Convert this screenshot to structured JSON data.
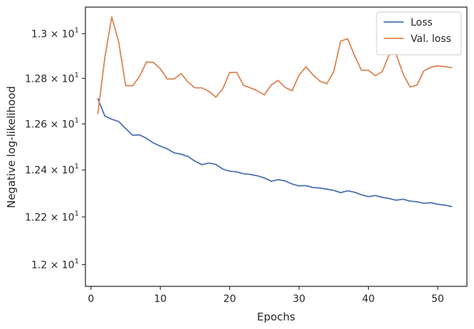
{
  "chart_data": {
    "type": "line",
    "title": "",
    "xlabel": "Epochs",
    "ylabel": "Negative log-likelihood",
    "xlim": [
      -0.8,
      54.2
    ],
    "ylim": [
      11.91,
      13.12
    ],
    "yscale": "log",
    "grid": false,
    "legend_position": "top-right",
    "x_ticks": [
      0,
      10,
      20,
      30,
      40,
      50
    ],
    "x_tick_labels": [
      "0",
      "10",
      "20",
      "30",
      "40",
      "50"
    ],
    "y_ticks": [
      12.0,
      12.2,
      12.4,
      12.6,
      12.8,
      13.0
    ],
    "y_tick_labels": [
      {
        "mantissa": "1.2",
        "times": "×",
        "base": "10",
        "exp": "1"
      },
      {
        "mantissa": "1.22",
        "times": "×",
        "base": "10",
        "exp": "1"
      },
      {
        "mantissa": "1.24",
        "times": "×",
        "base": "10",
        "exp": "1"
      },
      {
        "mantissa": "1.26",
        "times": "×",
        "base": "10",
        "exp": "1"
      },
      {
        "mantissa": "1.28",
        "times": "×",
        "base": "10",
        "exp": "1"
      },
      {
        "mantissa": "1.3",
        "times": "×",
        "base": "10",
        "exp": "1"
      }
    ],
    "x": [
      1,
      2,
      3,
      4,
      5,
      6,
      7,
      8,
      9,
      10,
      11,
      12,
      13,
      14,
      15,
      16,
      17,
      18,
      19,
      20,
      21,
      22,
      23,
      24,
      25,
      26,
      27,
      28,
      29,
      30,
      31,
      32,
      33,
      34,
      35,
      36,
      37,
      38,
      39,
      40,
      41,
      42,
      43,
      44,
      45,
      46,
      47,
      48,
      49,
      50,
      51,
      52
    ],
    "series": [
      {
        "name": "Loss",
        "color": "#4c72b0",
        "values": [
          12.71,
          12.634,
          12.62,
          12.61,
          12.58,
          12.55,
          12.552,
          12.537,
          12.517,
          12.503,
          12.491,
          12.474,
          12.468,
          12.458,
          12.438,
          12.423,
          12.43,
          12.424,
          12.404,
          12.395,
          12.392,
          12.384,
          12.381,
          12.375,
          12.366,
          12.352,
          12.359,
          12.353,
          12.34,
          12.332,
          12.333,
          12.325,
          12.323,
          12.318,
          12.313,
          12.303,
          12.311,
          12.305,
          12.294,
          12.286,
          12.291,
          12.283,
          12.278,
          12.271,
          12.275,
          12.267,
          12.264,
          12.258,
          12.26,
          12.254,
          12.25,
          12.244
        ]
      },
      {
        "name": "Val. loss",
        "color": "#dd8452",
        "values": [
          12.645,
          12.892,
          13.075,
          12.963,
          12.768,
          12.767,
          12.808,
          12.873,
          12.871,
          12.843,
          12.797,
          12.798,
          12.821,
          12.783,
          12.758,
          12.758,
          12.743,
          12.717,
          12.753,
          12.826,
          12.827,
          12.769,
          12.758,
          12.745,
          12.727,
          12.771,
          12.791,
          12.76,
          12.745,
          12.814,
          12.851,
          12.816,
          12.788,
          12.776,
          12.83,
          12.966,
          12.977,
          12.902,
          12.836,
          12.836,
          12.812,
          12.83,
          12.906,
          12.908,
          12.82,
          12.762,
          12.77,
          12.834,
          12.849,
          12.856,
          12.852,
          12.848
        ]
      }
    ]
  }
}
